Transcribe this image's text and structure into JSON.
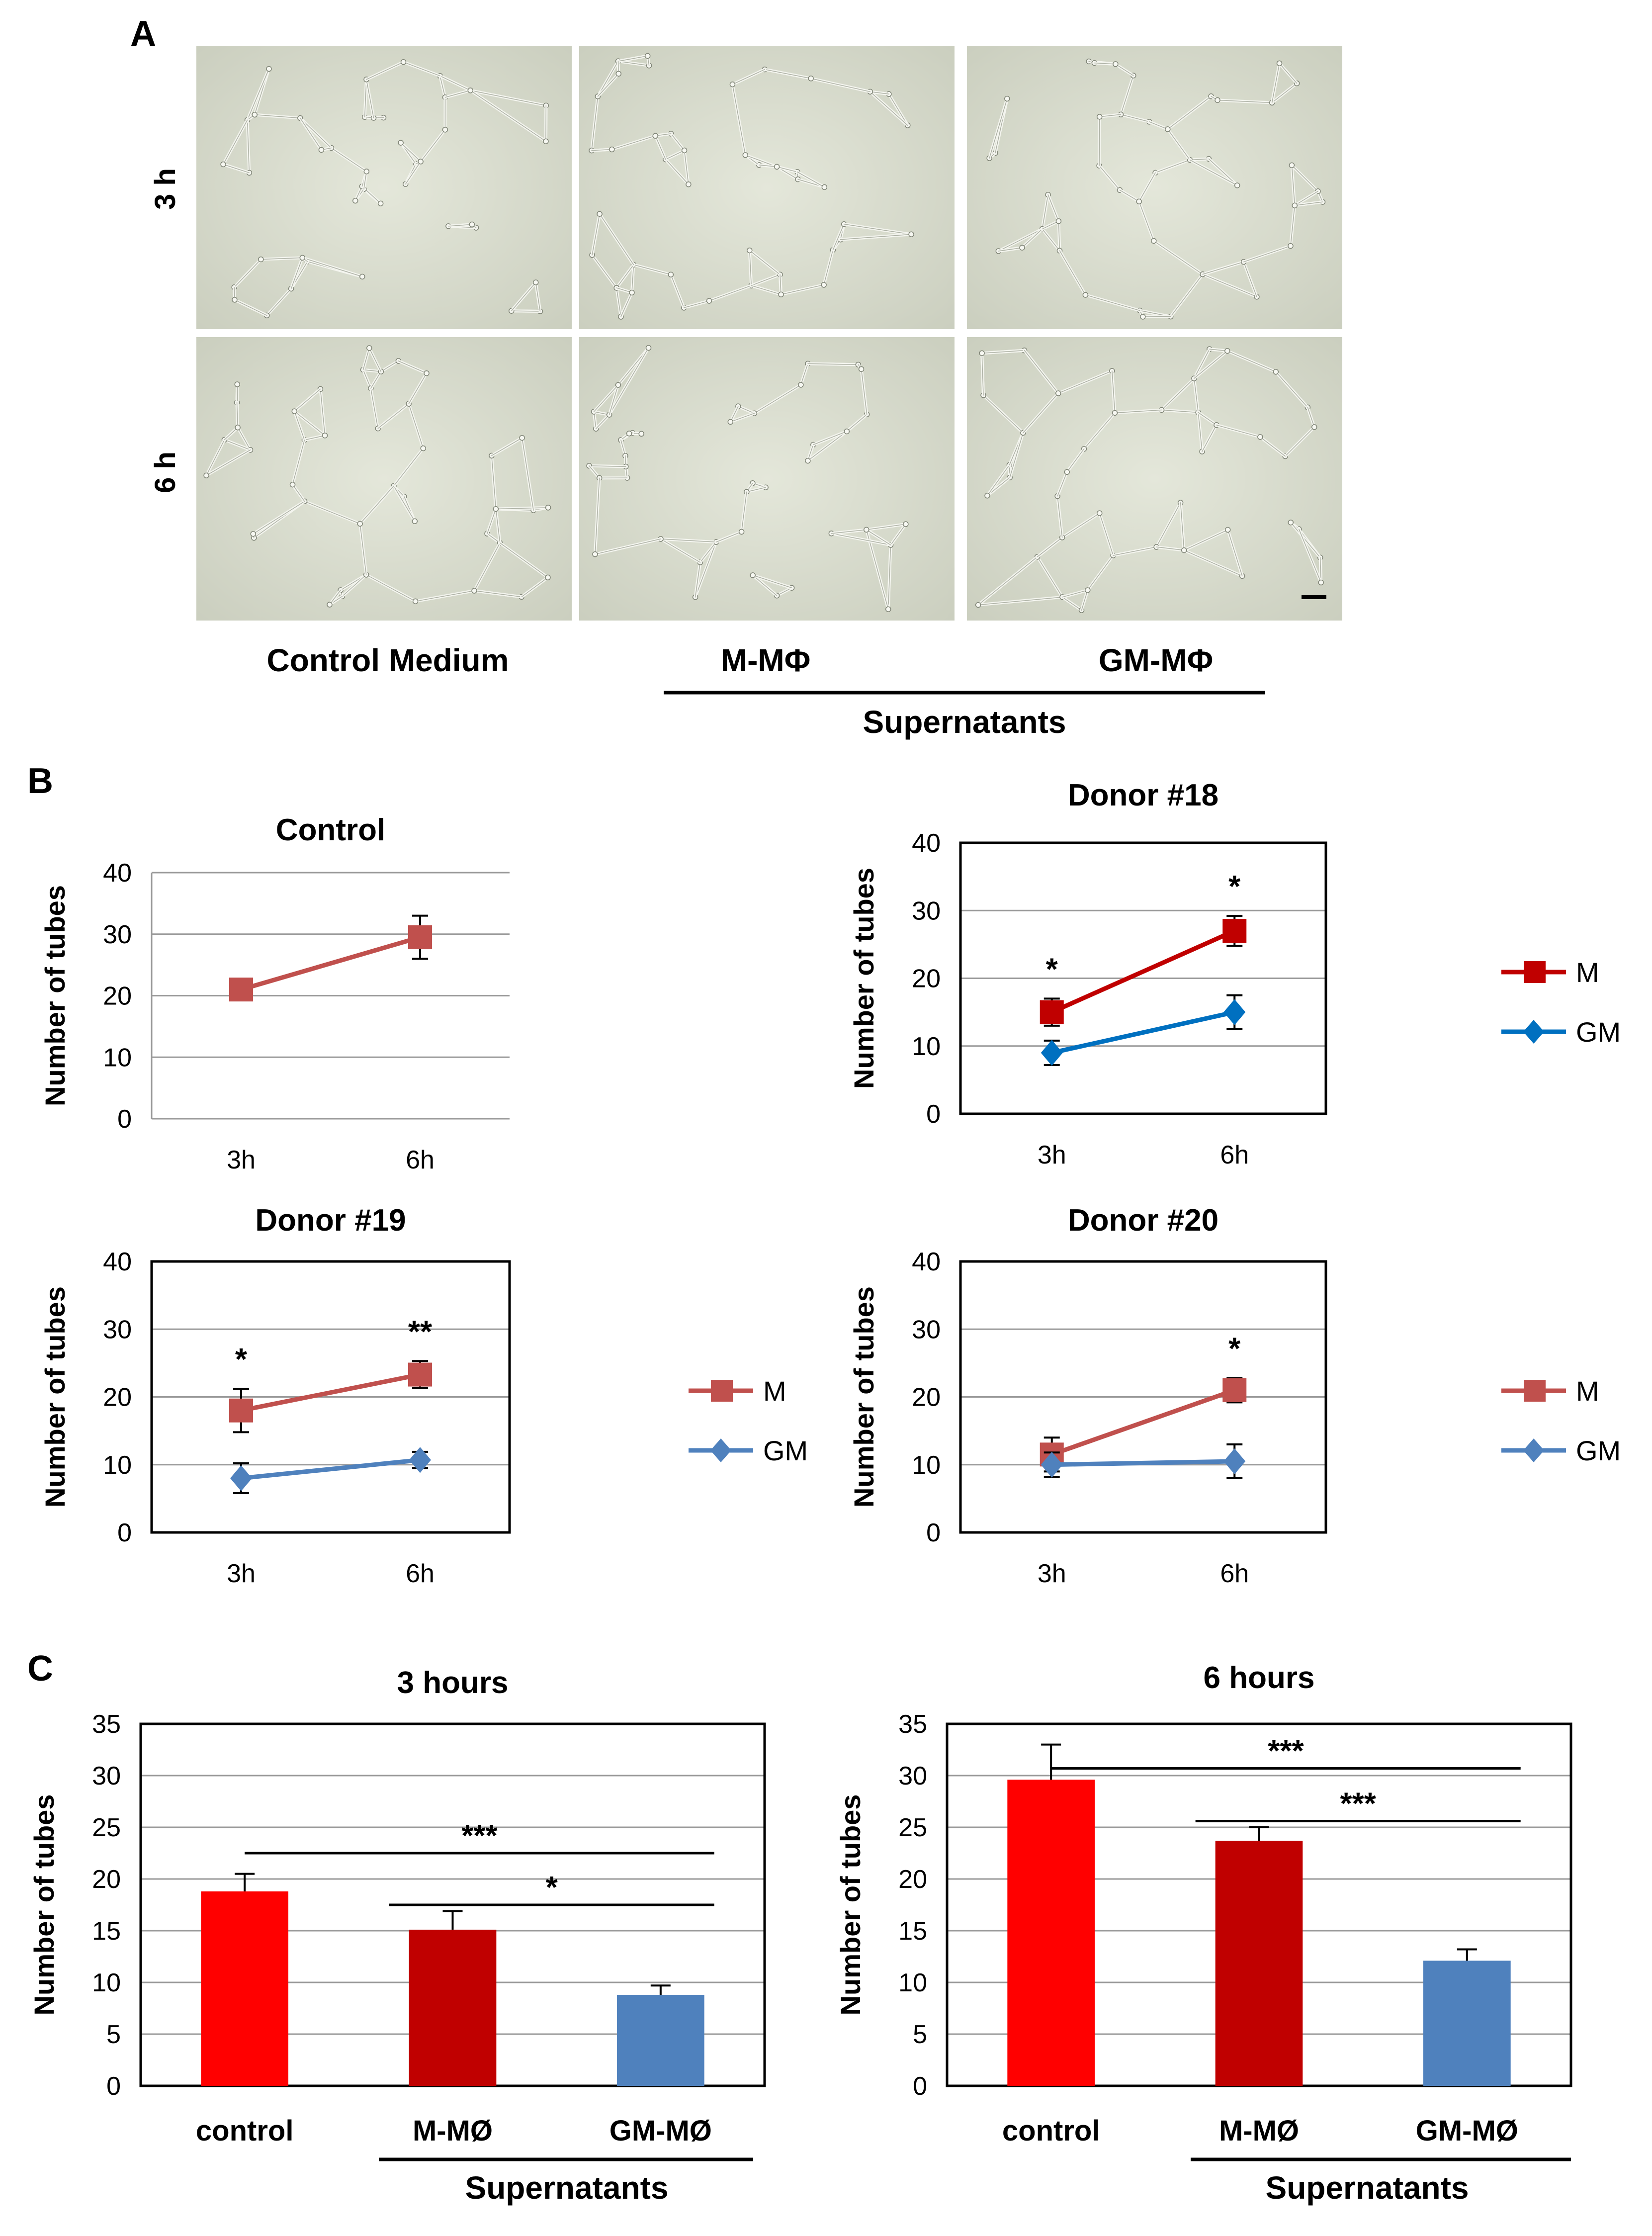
{
  "panelA": {
    "letter": "A",
    "rows": [
      "3 h",
      "6 h"
    ],
    "columns": [
      "Control Medium",
      "M-MΦ",
      "GM-MΦ"
    ],
    "group_label": "Supernatants"
  },
  "panelB": {
    "letter": "B",
    "charts": [
      {
        "title": "Control",
        "ylabel": "Number of tubes",
        "yticks": [
          "0",
          "10",
          "20",
          "30",
          "40"
        ],
        "xticks": [
          "3h",
          "6h"
        ],
        "framed": false,
        "legend": [],
        "series": [
          {
            "name": "Control",
            "color": "#c0504d",
            "marker": "square",
            "values": [
              21,
              29.5
            ],
            "errors": [
              1.2,
              3.5
            ]
          }
        ],
        "stars": []
      },
      {
        "title": "Donor #18",
        "ylabel": "Number of tubes",
        "yticks": [
          "0",
          "10",
          "20",
          "30",
          "40"
        ],
        "xticks": [
          "3h",
          "6h"
        ],
        "framed": true,
        "legend": [
          "M",
          "GM"
        ],
        "series": [
          {
            "name": "M",
            "color": "#c00000",
            "marker": "square",
            "values": [
              15,
              27
            ],
            "errors": [
              2,
              2.2
            ]
          },
          {
            "name": "GM",
            "color": "#0070c0",
            "marker": "diamond",
            "values": [
              9,
              15
            ],
            "errors": [
              1.8,
              2.5
            ]
          }
        ],
        "stars": [
          "*",
          "*"
        ]
      },
      {
        "title": "Donor #19",
        "ylabel": "Number of tubes",
        "yticks": [
          "0",
          "10",
          "20",
          "30",
          "40"
        ],
        "xticks": [
          "3h",
          "6h"
        ],
        "framed": true,
        "legend": [
          "M",
          "GM"
        ],
        "series": [
          {
            "name": "M",
            "color": "#c0504d",
            "marker": "square",
            "values": [
              18,
              23.3
            ],
            "errors": [
              3.2,
              2
            ]
          },
          {
            "name": "GM",
            "color": "#4f81bd",
            "marker": "diamond",
            "values": [
              8,
              10.7
            ],
            "errors": [
              2.2,
              1.2
            ]
          }
        ],
        "stars": [
          "*",
          "**"
        ]
      },
      {
        "title": "Donor #20",
        "ylabel": "Number of tubes",
        "yticks": [
          "0",
          "10",
          "20",
          "30",
          "40"
        ],
        "xticks": [
          "3h",
          "6h"
        ],
        "framed": true,
        "legend": [
          "M",
          "GM"
        ],
        "series": [
          {
            "name": "M",
            "color": "#c0504d",
            "marker": "square",
            "values": [
              11.5,
              21
            ],
            "errors": [
              2.5,
              1.8
            ]
          },
          {
            "name": "GM",
            "color": "#4f81bd",
            "marker": "diamond",
            "values": [
              10,
              10.5
            ],
            "errors": [
              1.8,
              2.5
            ]
          }
        ],
        "stars": [
          "",
          "*"
        ]
      }
    ]
  },
  "panelC": {
    "letter": "C",
    "group_label": "Supernatants",
    "charts": [
      {
        "title": "3 hours",
        "ylabel": "Number of tubes",
        "yticks": [
          "0",
          "5",
          "10",
          "15",
          "20",
          "25",
          "30",
          "35"
        ],
        "categories": [
          "control",
          "M-MØ",
          "GM-MØ"
        ],
        "values": [
          18.8,
          15.1,
          8.8
        ],
        "errors": [
          1.7,
          1.8,
          0.9
        ],
        "colors": [
          "#ff0000",
          "#c00000",
          "#4f81bd"
        ],
        "sig_lines": [
          {
            "from": 0,
            "to": 2,
            "y": 22.5,
            "label": "***"
          },
          {
            "from": 1,
            "to": 2,
            "y": 17.5,
            "label": "*"
          }
        ]
      },
      {
        "title": "6 hours",
        "ylabel": "Number of tubes",
        "yticks": [
          "0",
          "5",
          "10",
          "15",
          "20",
          "25",
          "30",
          "35"
        ],
        "categories": [
          "control",
          "M-MØ",
          "GM-MØ"
        ],
        "values": [
          29.6,
          23.7,
          12.1
        ],
        "errors": [
          3.4,
          1.3,
          1.1
        ],
        "colors": [
          "#ff0000",
          "#c00000",
          "#4f81bd"
        ],
        "sig_lines": [
          {
            "from": 0,
            "to": 2,
            "y": 30.7,
            "label": "***"
          },
          {
            "from": 1,
            "to": 2,
            "y": 25.6,
            "label": "***"
          }
        ]
      }
    ]
  },
  "chart_data": [
    {
      "type": "line",
      "title": "Control",
      "xlabel": "",
      "ylabel": "Number of tubes",
      "x": [
        "3h",
        "6h"
      ],
      "ylim": [
        0,
        40
      ],
      "series": [
        {
          "name": "Control",
          "values": [
            21,
            29.5
          ]
        }
      ]
    },
    {
      "type": "line",
      "title": "Donor #18",
      "xlabel": "",
      "ylabel": "Number of tubes",
      "x": [
        "3h",
        "6h"
      ],
      "ylim": [
        0,
        40
      ],
      "series": [
        {
          "name": "M",
          "values": [
            15,
            27
          ]
        },
        {
          "name": "GM",
          "values": [
            9,
            15
          ]
        }
      ]
    },
    {
      "type": "line",
      "title": "Donor #19",
      "xlabel": "",
      "ylabel": "Number of tubes",
      "x": [
        "3h",
        "6h"
      ],
      "ylim": [
        0,
        40
      ],
      "series": [
        {
          "name": "M",
          "values": [
            18,
            23.3
          ]
        },
        {
          "name": "GM",
          "values": [
            8,
            10.7
          ]
        }
      ]
    },
    {
      "type": "line",
      "title": "Donor #20",
      "xlabel": "",
      "ylabel": "Number of tubes",
      "x": [
        "3h",
        "6h"
      ],
      "ylim": [
        0,
        40
      ],
      "series": [
        {
          "name": "M",
          "values": [
            11.5,
            21
          ]
        },
        {
          "name": "GM",
          "values": [
            10,
            10.5
          ]
        }
      ]
    },
    {
      "type": "bar",
      "title": "3 hours",
      "xlabel": "Supernatants",
      "ylabel": "Number of tubes",
      "categories": [
        "control",
        "M-MØ",
        "GM-MØ"
      ],
      "values": [
        18.8,
        15.1,
        8.8
      ],
      "ylim": [
        0,
        35
      ]
    },
    {
      "type": "bar",
      "title": "6 hours",
      "xlabel": "Supernatants",
      "ylabel": "Number of tubes",
      "categories": [
        "control",
        "M-MØ",
        "GM-MØ"
      ],
      "values": [
        29.6,
        23.7,
        12.1
      ],
      "ylim": [
        0,
        35
      ]
    }
  ]
}
